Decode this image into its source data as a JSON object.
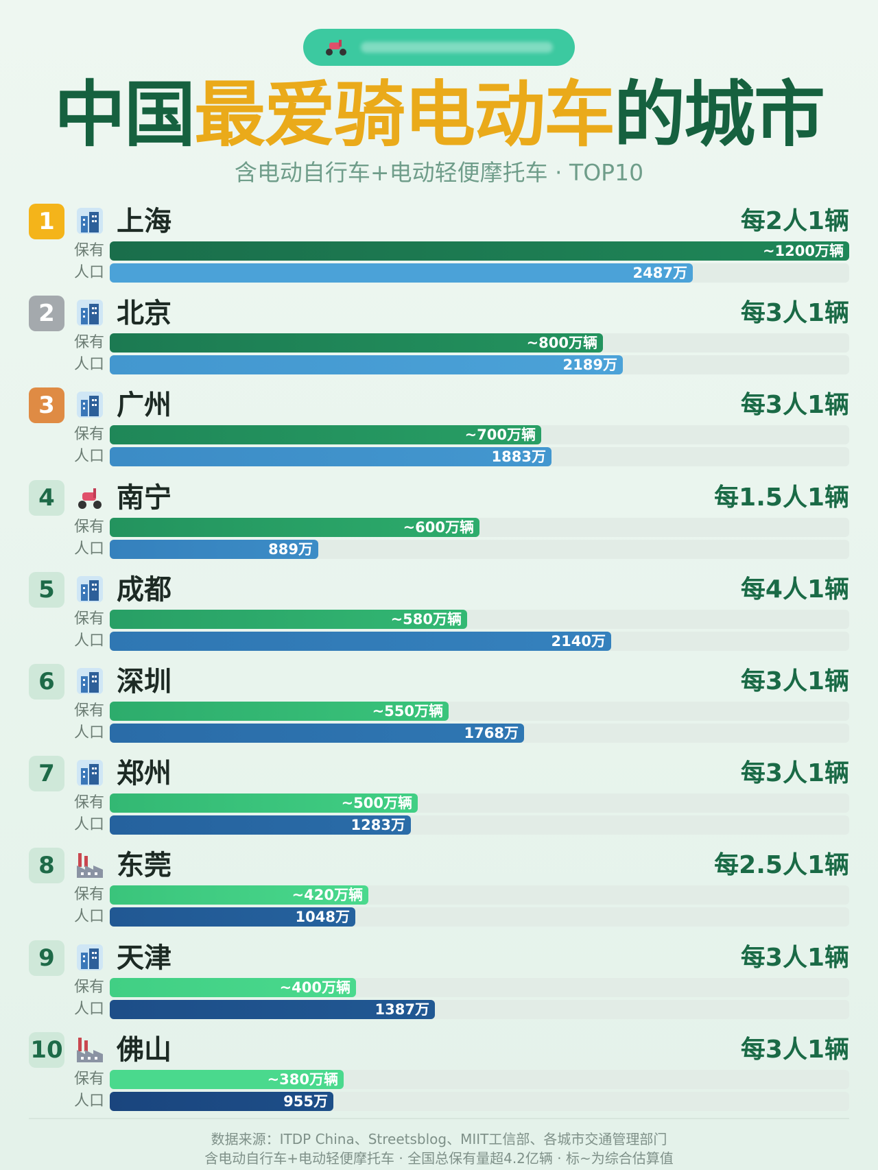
{
  "header": {
    "title_part1": "中国",
    "title_part2": "最爱骑电动车",
    "title_part3": "的城市",
    "subtitle": "含电动自行车+电动轻便摩托车 · TOP10"
  },
  "labels": {
    "owned": "保有",
    "population": "人口"
  },
  "footer": {
    "line1": "数据来源：ITDP China、Streetsblog、MIIT工信部、各城市交通管理部门",
    "line2": "含电动自行车+电动轻便摩托车 · 全国总保有量超4.2亿辆 · 标~为综合估算值"
  },
  "colors": {
    "green_dark": "#16613f",
    "accent_orange": "#eaaa1a",
    "pop_blue": "#3d8fcb"
  },
  "chart_data": {
    "type": "bar",
    "title": "中国最爱骑电动车的城市",
    "subtitle": "含电动自行车+电动轻便摩托车 · TOP10",
    "categories": [
      "上海",
      "北京",
      "广州",
      "南宁",
      "成都",
      "深圳",
      "郑州",
      "东莞",
      "天津",
      "佛山"
    ],
    "series": [
      {
        "name": "保有",
        "unit": "万辆",
        "values": [
          1200,
          800,
          700,
          600,
          580,
          550,
          500,
          420,
          400,
          380
        ],
        "labels": [
          "~1200万辆",
          "~800万辆",
          "~700万辆",
          "~600万辆",
          "~580万辆",
          "~550万辆",
          "~500万辆",
          "~420万辆",
          "~400万辆",
          "~380万辆"
        ]
      },
      {
        "name": "人口",
        "unit": "万",
        "values": [
          2487,
          2189,
          1883,
          889,
          2140,
          1768,
          1283,
          1048,
          1387,
          955
        ],
        "labels": [
          "2487万",
          "2189万",
          "1883万",
          "889万",
          "2140万",
          "1768万",
          "1283万",
          "1048万",
          "1387万",
          "955万"
        ]
      }
    ],
    "ranks": [
      "1",
      "2",
      "3",
      "4",
      "5",
      "6",
      "7",
      "8",
      "9",
      "10"
    ],
    "ratios": [
      "每2人1辆",
      "每3人1辆",
      "每3人1辆",
      "每1.5人1辆",
      "每4人1辆",
      "每3人1辆",
      "每3人1辆",
      "每2.5人1辆",
      "每3人1辆",
      "每3人1辆"
    ],
    "icons": [
      "city-icon",
      "city-icon",
      "city-icon",
      "scooter-icon",
      "city-icon",
      "city-icon",
      "city-icon",
      "factory-icon",
      "city-icon",
      "factory-icon"
    ]
  }
}
